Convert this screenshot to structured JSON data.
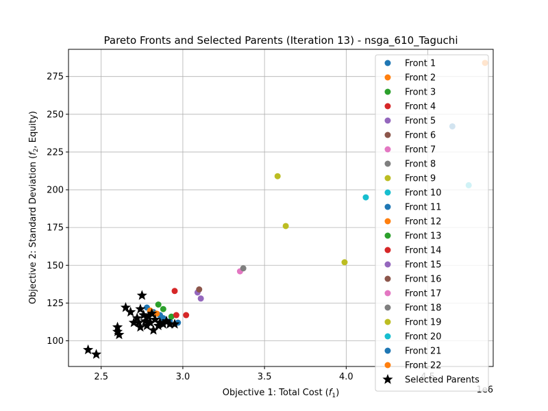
{
  "chart_data": {
    "type": "scatter",
    "title": "Pareto Fronts and Selected Parents (Iteration 13) - nsga_610_Taguchi",
    "xlabel": {
      "pre": "Objective 1: Total Cost (",
      "var": "f",
      "sub": "1",
      "post": ")"
    },
    "ylabel": {
      "pre": "Objective 2: Standard Deviation (",
      "var": "f",
      "sub": "2",
      "post": ", Equity)"
    },
    "x_offset_label": "1e6",
    "xlim": [
      2.3,
      4.9
    ],
    "ylim": [
      83,
      293
    ],
    "xticks": [
      2.5,
      3.0,
      3.5,
      4.0,
      4.5
    ],
    "xtick_labels": [
      "2.5",
      "3.0",
      "3.5",
      "4.0",
      "4.5"
    ],
    "yticks": [
      100,
      125,
      150,
      175,
      200,
      225,
      250,
      275
    ],
    "ytick_labels": [
      "100",
      "125",
      "150",
      "175",
      "200",
      "225",
      "250",
      "275"
    ],
    "grid": true,
    "legend_position": "upper-right",
    "series": [
      {
        "name": "Front 1",
        "color": "#1f77b4",
        "points": [
          [
            2.78,
            122
          ],
          [
            2.82,
            119
          ],
          [
            2.86,
            117
          ],
          [
            2.88,
            115
          ],
          [
            2.92,
            113
          ],
          [
            2.97,
            112
          ],
          [
            4.65,
            242
          ]
        ]
      },
      {
        "name": "Front 2",
        "color": "#ff7f0e",
        "points": [
          [
            2.8,
            120
          ],
          [
            2.84,
            118
          ],
          [
            4.85,
            284
          ]
        ]
      },
      {
        "name": "Front 3",
        "color": "#2ca02c",
        "points": [
          [
            2.85,
            124
          ],
          [
            2.88,
            121
          ],
          [
            2.93,
            116
          ]
        ]
      },
      {
        "name": "Front 4",
        "color": "#d62728",
        "points": [
          [
            2.95,
            133
          ],
          [
            2.96,
            117
          ],
          [
            3.02,
            117
          ]
        ]
      },
      {
        "name": "Front 5",
        "color": "#9467bd",
        "points": [
          [
            3.09,
            132
          ],
          [
            3.11,
            128
          ]
        ]
      },
      {
        "name": "Front 6",
        "color": "#8c564b",
        "points": [
          [
            3.1,
            134
          ]
        ]
      },
      {
        "name": "Front 7",
        "color": "#e377c2",
        "points": [
          [
            3.35,
            146
          ]
        ]
      },
      {
        "name": "Front 8",
        "color": "#7f7f7f",
        "points": [
          [
            3.37,
            148
          ]
        ]
      },
      {
        "name": "Front 9",
        "color": "#bcbd22",
        "points": [
          [
            3.58,
            209
          ],
          [
            3.63,
            176
          ],
          [
            3.99,
            152
          ]
        ]
      },
      {
        "name": "Front 10",
        "color": "#17becf",
        "points": [
          [
            4.12,
            195
          ],
          [
            4.75,
            203
          ]
        ]
      },
      {
        "name": "Front 11",
        "color": "#1f77b4",
        "points": []
      },
      {
        "name": "Front 12",
        "color": "#ff7f0e",
        "points": []
      },
      {
        "name": "Front 13",
        "color": "#2ca02c",
        "points": []
      },
      {
        "name": "Front 14",
        "color": "#d62728",
        "points": []
      },
      {
        "name": "Front 15",
        "color": "#9467bd",
        "points": []
      },
      {
        "name": "Front 16",
        "color": "#8c564b",
        "points": []
      },
      {
        "name": "Front 17",
        "color": "#e377c2",
        "points": []
      },
      {
        "name": "Front 18",
        "color": "#7f7f7f",
        "points": []
      },
      {
        "name": "Front 19",
        "color": "#bcbd22",
        "points": []
      },
      {
        "name": "Front 20",
        "color": "#17becf",
        "points": []
      },
      {
        "name": "Front 21",
        "color": "#1f77b4",
        "points": []
      },
      {
        "name": "Front 22",
        "color": "#ff7f0e",
        "points": []
      }
    ],
    "selected_parents": {
      "name": "Selected Parents",
      "color": "#000000",
      "points": [
        [
          2.42,
          94
        ],
        [
          2.47,
          91
        ],
        [
          2.6,
          109
        ],
        [
          2.61,
          104
        ],
        [
          2.6,
          106
        ],
        [
          2.65,
          122
        ],
        [
          2.68,
          119
        ],
        [
          2.7,
          112
        ],
        [
          2.72,
          115
        ],
        [
          2.74,
          121
        ],
        [
          2.75,
          130
        ],
        [
          2.76,
          117
        ],
        [
          2.77,
          113
        ],
        [
          2.78,
          110
        ],
        [
          2.79,
          116
        ],
        [
          2.8,
          112
        ],
        [
          2.82,
          107
        ],
        [
          2.83,
          114
        ],
        [
          2.85,
          110
        ],
        [
          2.86,
          112
        ],
        [
          2.88,
          111
        ],
        [
          2.9,
          113
        ],
        [
          2.92,
          111
        ],
        [
          2.95,
          111
        ],
        [
          2.74,
          109
        ],
        [
          2.81,
          118
        ],
        [
          2.73,
          112
        ]
      ]
    }
  }
}
